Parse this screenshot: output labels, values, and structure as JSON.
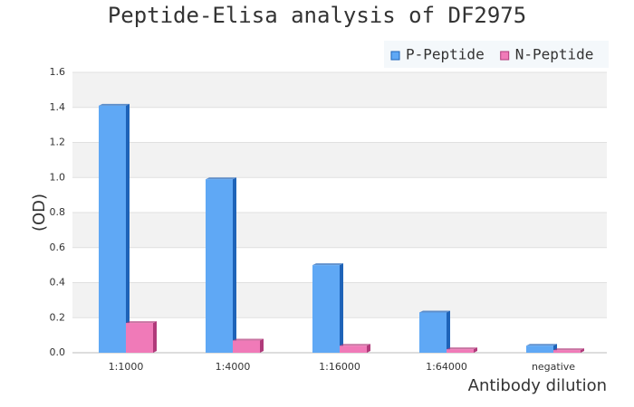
{
  "chart_data": {
    "type": "bar",
    "title": "Peptide-Elisa analysis of DF2975",
    "y_label": "(OD)",
    "x_label": "Antibody dilution",
    "categories": [
      "1:1000",
      "1:4000",
      "1:16000",
      "1:64000",
      "negative"
    ],
    "series": [
      {
        "name": "P-Peptide",
        "color": "#5fa8f5",
        "values": [
          1.41,
          0.99,
          0.5,
          0.23,
          0.04
        ]
      },
      {
        "name": "N-Peptide",
        "color": "#f07ab8",
        "values": [
          0.17,
          0.07,
          0.04,
          0.02,
          0.015
        ]
      }
    ],
    "ylim": [
      0,
      1.6
    ],
    "yticks": [
      {
        "value": 0,
        "label": "0.0"
      },
      0.2,
      0.4,
      0.6,
      0.8,
      {
        "value": 1,
        "label": "1.0"
      },
      1.2,
      1.4,
      1.6
    ],
    "grid": true,
    "legend": "top-right"
  }
}
